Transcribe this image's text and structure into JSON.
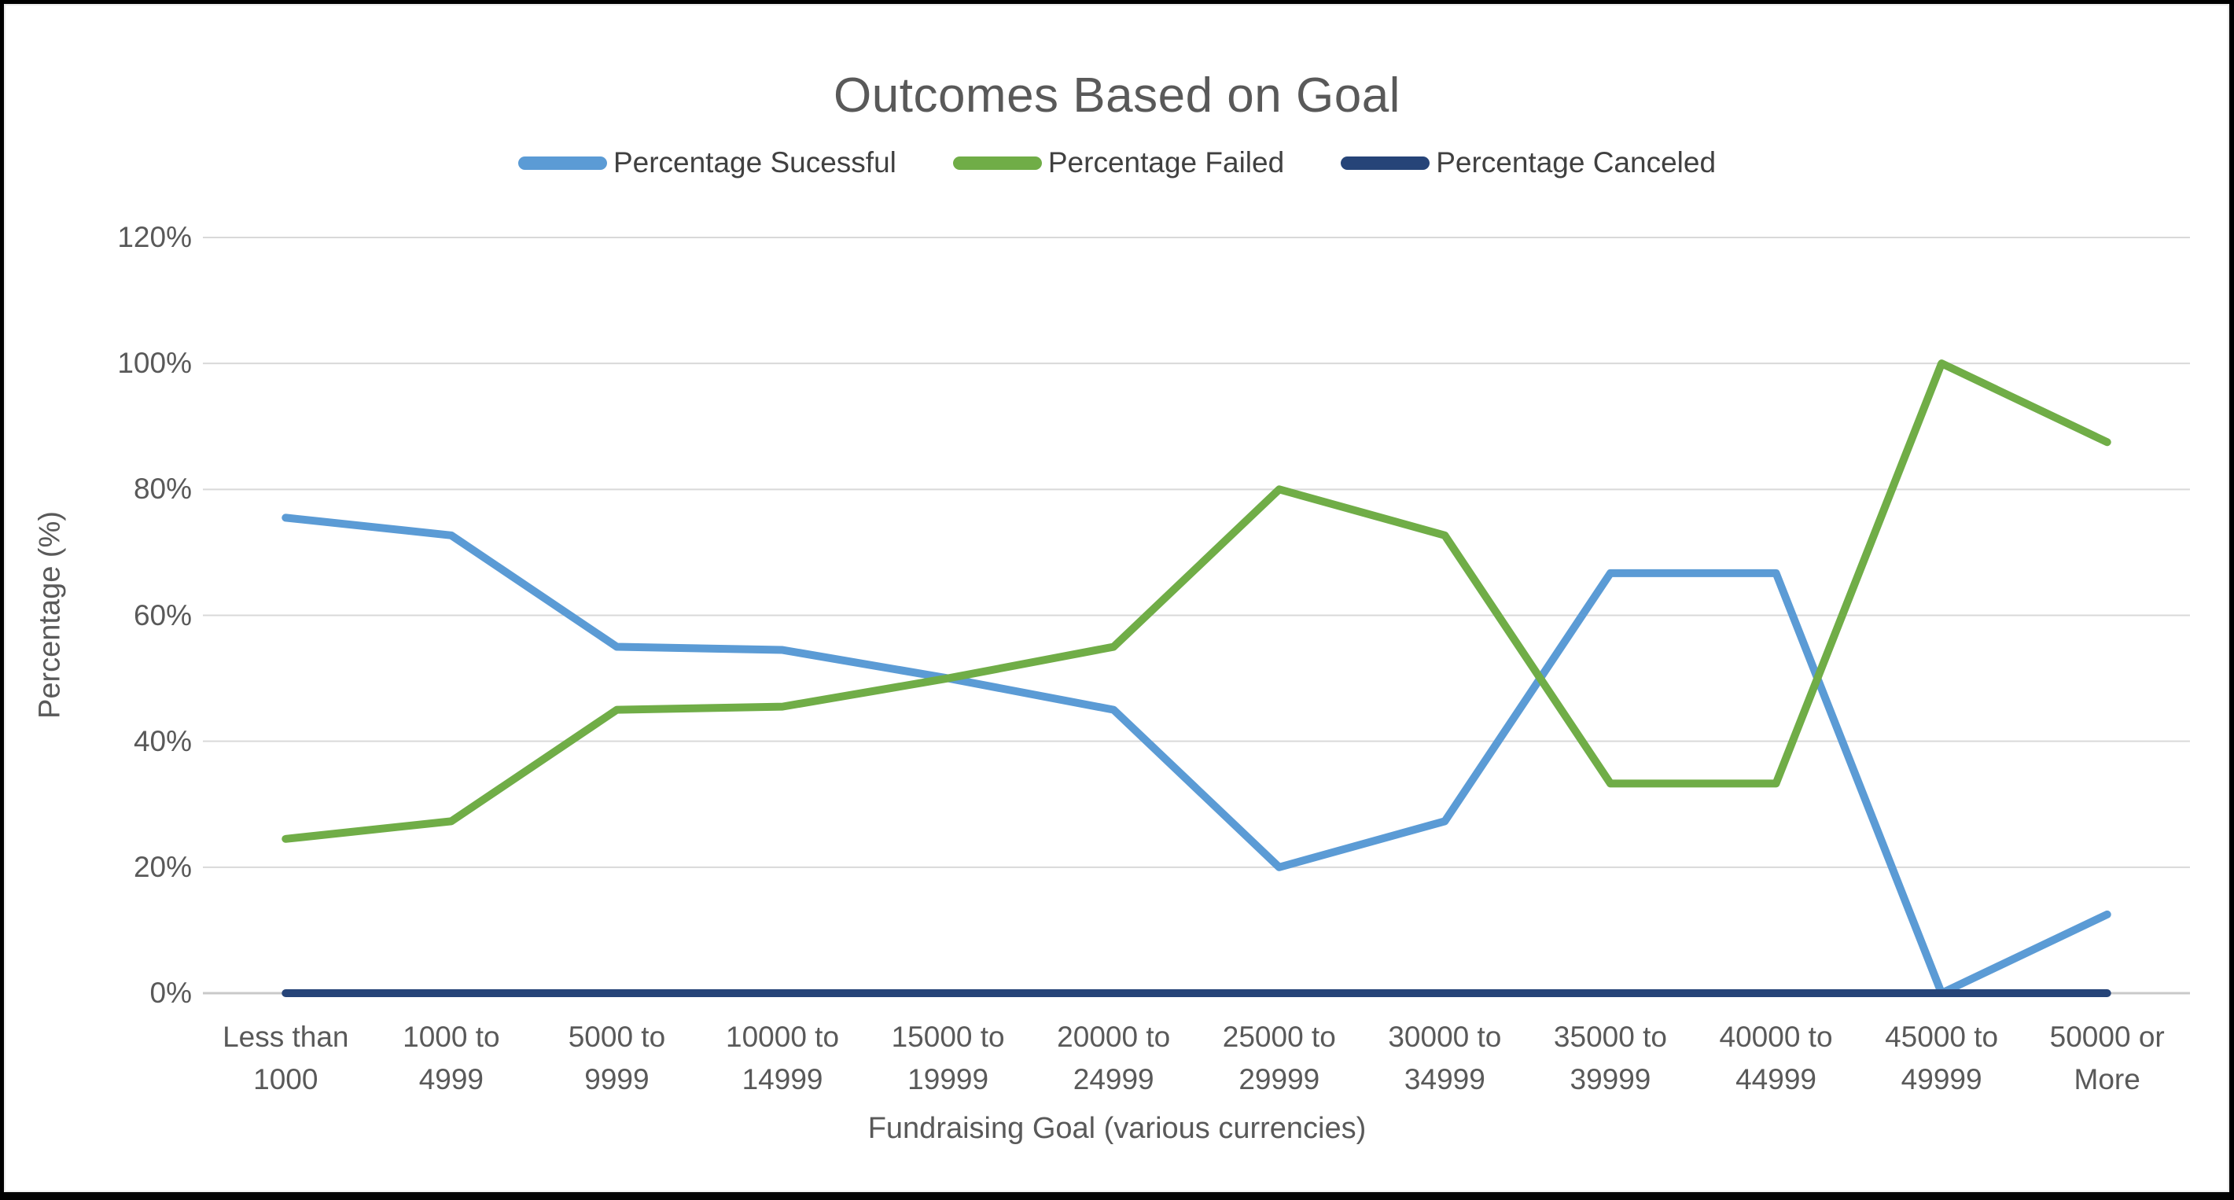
{
  "chart_data": {
    "type": "line",
    "title": "Outcomes Based on Goal",
    "xlabel": "Fundraising Goal (various currencies)",
    "ylabel": "Percentage (%)",
    "ylim": [
      0,
      120
    ],
    "ytick_step": 20,
    "ytick_labels": [
      "0%",
      "20%",
      "40%",
      "60%",
      "80%",
      "100%",
      "120%"
    ],
    "grid": true,
    "legend_position": "top",
    "categories": [
      "Less than\n1000",
      "1000 to\n4999",
      "5000 to\n9999",
      "10000 to\n14999",
      "15000 to\n19999",
      "20000 to\n24999",
      "25000 to\n29999",
      "30000 to\n34999",
      "35000 to\n39999",
      "40000 to\n44999",
      "45000 to\n49999",
      "50000 or\nMore"
    ],
    "series": [
      {
        "name": "Percentage Sucessful",
        "color": "#5B9BD5",
        "values": [
          75.5,
          72.7,
          55,
          54.5,
          50,
          45,
          20,
          27.3,
          66.7,
          66.7,
          0,
          12.5
        ]
      },
      {
        "name": "Percentage Failed",
        "color": "#70AD47",
        "values": [
          24.5,
          27.3,
          45,
          45.5,
          50,
          55,
          80,
          72.7,
          33.3,
          33.3,
          100,
          87.5
        ]
      },
      {
        "name": "Percentage Canceled",
        "color": "#264478",
        "values": [
          0,
          0,
          0,
          0,
          0,
          0,
          0,
          0,
          0,
          0,
          0,
          0
        ]
      }
    ],
    "colors": {
      "text": "#595959",
      "gridline": "#D9D9D9",
      "axis_line": "#C9C9C9"
    }
  }
}
